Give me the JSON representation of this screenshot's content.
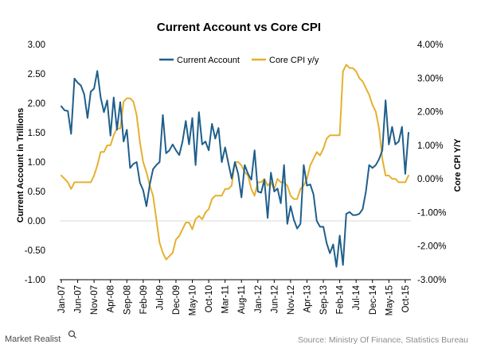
{
  "logo": {
    "text": "Market Realist"
  },
  "source": "Source: Ministry Of Finance, Statistics Bureau",
  "colors": {
    "current_account": "#1f5f8b",
    "core_cpi": "#e6b02e",
    "zero_line": "#d9d9d9",
    "axis": "#000000"
  },
  "chart_data": {
    "type": "line",
    "title": "Current Account vs Core CPI",
    "ylabel": "Current Account  in Trillions",
    "y2label": "Core CPI Y/Y",
    "ylim": [
      -1.0,
      3.0
    ],
    "y2lim": [
      -3.0,
      4.0
    ],
    "yticks": [
      "3.00",
      "2.50",
      "2.00",
      "1.50",
      "1.00",
      "0.50",
      "0.00",
      "-0.50",
      "-1.00"
    ],
    "y2ticks": [
      "4.00%",
      "3.00%",
      "2.00%",
      "1.00%",
      "0.00%",
      "-1.00%",
      "-2.00%",
      "-3.00%"
    ],
    "xticks": [
      "Jan-07",
      "Jun-07",
      "Nov-07",
      "Apr-08",
      "Sep-08",
      "Feb-09",
      "Jul-09",
      "Dec-09",
      "May-10",
      "Oct-10",
      "Mar-11",
      "Aug-11",
      "Jan-12",
      "Jun-12",
      "Nov-12",
      "Apr-13",
      "Sep-13",
      "Feb-14",
      "Jul-14",
      "Dec-14",
      "May-15",
      "Oct-15"
    ],
    "x_start": "Jan-07",
    "x_step": "1 month",
    "legend_position": "top-center",
    "grid": false,
    "series": [
      {
        "name": "Current Account",
        "axis": "left",
        "values": [
          1.95,
          1.88,
          1.87,
          1.48,
          2.42,
          2.35,
          2.3,
          2.15,
          1.75,
          2.2,
          2.25,
          2.55,
          2.1,
          1.85,
          2.05,
          1.45,
          2.1,
          1.55,
          2.02,
          1.35,
          1.55,
          0.9,
          0.97,
          1.0,
          0.65,
          0.52,
          0.25,
          0.62,
          0.88,
          0.95,
          1.0,
          1.8,
          1.15,
          1.2,
          1.3,
          1.2,
          1.12,
          1.35,
          1.7,
          1.3,
          1.75,
          0.95,
          1.85,
          1.3,
          1.35,
          1.2,
          1.65,
          1.4,
          1.58,
          1.0,
          1.25,
          0.98,
          0.72,
          1.0,
          0.8,
          0.4,
          0.95,
          0.8,
          0.7,
          1.2,
          0.5,
          0.48,
          0.7,
          0.05,
          0.82,
          0.5,
          0.55,
          0.3,
          0.95,
          -0.05,
          0.25,
          0.02,
          -0.13,
          -0.05,
          0.95,
          0.6,
          0.62,
          0.45,
          0.0,
          -0.1,
          -0.1,
          -0.38,
          -0.55,
          -0.4,
          -0.78,
          -0.25,
          -0.75,
          0.12,
          0.15,
          0.1,
          0.1,
          0.12,
          0.2,
          0.5,
          0.95,
          0.9,
          0.95,
          1.05,
          1.2,
          2.05,
          1.3,
          1.6,
          1.3,
          1.35,
          1.6,
          0.8,
          1.5
        ]
      },
      {
        "name": "Core CPI y/y",
        "axis": "right",
        "values": [
          0.1,
          0.0,
          -0.1,
          -0.3,
          -0.1,
          -0.1,
          -0.1,
          -0.1,
          -0.1,
          -0.1,
          0.1,
          0.4,
          0.8,
          0.8,
          1.0,
          1.0,
          1.3,
          1.5,
          1.5,
          2.3,
          2.4,
          2.4,
          2.3,
          1.9,
          1.1,
          0.5,
          0.2,
          -0.2,
          -0.5,
          -1.2,
          -1.9,
          -2.2,
          -2.4,
          -2.3,
          -2.2,
          -1.8,
          -1.7,
          -1.5,
          -1.3,
          -1.3,
          -1.5,
          -1.2,
          -1.1,
          -1.2,
          -1.0,
          -0.9,
          -0.6,
          -0.5,
          -0.5,
          -0.5,
          -0.3,
          -0.3,
          -0.2,
          0.5,
          0.5,
          0.4,
          0.2,
          0.1,
          -0.3,
          -0.5,
          -0.1,
          -0.1,
          0.0,
          -0.2,
          -0.1,
          -0.3,
          0.0,
          -0.1,
          -0.1,
          -0.2,
          -0.5,
          -0.6,
          -0.6,
          -0.3,
          -0.2,
          0.0,
          0.4,
          0.6,
          0.8,
          0.7,
          0.9,
          1.2,
          1.3,
          1.3,
          1.3,
          1.3,
          3.2,
          3.4,
          3.3,
          3.3,
          3.2,
          3.0,
          2.9,
          2.7,
          2.5,
          2.2,
          2.0,
          1.5,
          0.6,
          0.1,
          0.1,
          0.0,
          0.0,
          -0.1,
          -0.1,
          -0.1,
          0.1
        ]
      }
    ]
  }
}
